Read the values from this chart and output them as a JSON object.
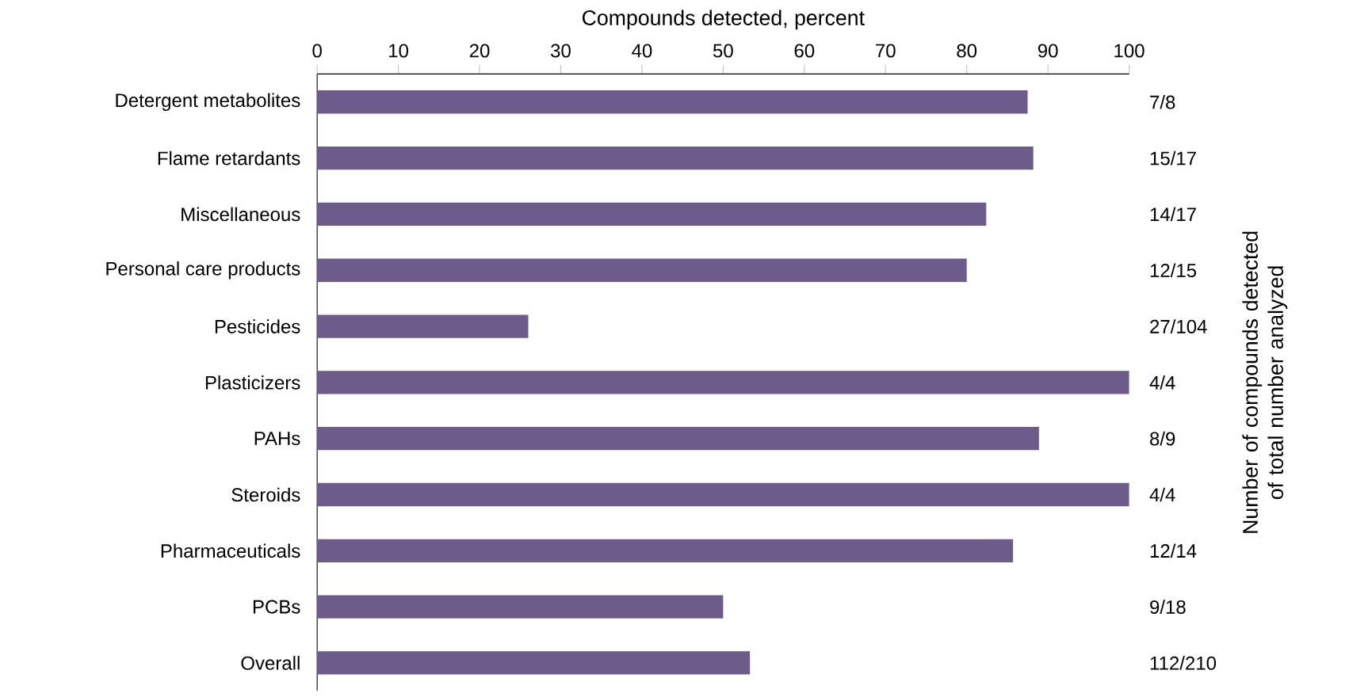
{
  "chart_data": {
    "type": "bar",
    "orientation": "horizontal",
    "xlabel": "Compounds detected, percent",
    "y2label": "Number of compounds detected of total number analyzed",
    "categories": [
      "Detergent metabolites",
      "Flame retardants",
      "Miscellaneous",
      "Personal care products",
      "Pesticides",
      "Plasticizers",
      "PAHs",
      "Steroids",
      "Pharmaceuticals",
      "PCBs",
      "Overall"
    ],
    "values": [
      87.5,
      88.2,
      82.4,
      80,
      26,
      100,
      88.9,
      100,
      85.7,
      50,
      53.3
    ],
    "annotations": [
      "7/8",
      "15/17",
      "14/17",
      "12/15",
      "27/104",
      "4/4",
      "8/9",
      "4/4",
      "12/14",
      "9/18",
      "112/210"
    ],
    "color": "#6d5b8c",
    "xlim": [
      0,
      100
    ],
    "xticks": [
      0,
      10,
      20,
      30,
      40,
      50,
      60,
      70,
      80,
      90,
      100
    ]
  }
}
